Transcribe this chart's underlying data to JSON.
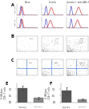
{
  "col_titles": [
    "Naive",
    "Listeria",
    "Listeria + anti-LAG-3"
  ],
  "row_labels_A": [
    "Day 21",
    "Day 11"
  ],
  "hist_blue": "#4444bb",
  "hist_red": "#cc3333",
  "dot_color": "#222222",
  "blue_line_color": "#4477cc",
  "panel_bg": "#f0f0f0",
  "axes_bg": "#ffffff",
  "bar_E": {
    "values": [
      3.2,
      1.0
    ],
    "errors": [
      0.55,
      0.25
    ],
    "bar_colors": [
      "#555555",
      "#888888"
    ],
    "ylabel": "% HA-Spec\nCD8+ T cells",
    "title": "E",
    "xtick_labels": [
      "anti-LAG-3\n+anti-CD8",
      "anti-LAG-3"
    ]
  },
  "bar_F": {
    "values": [
      2.6,
      0.7
    ],
    "errors": [
      0.8,
      0.2
    ],
    "bar_colors": [
      "#555555",
      "#888888"
    ],
    "ylabel": "# HA-Spec\nCD8+ T cells",
    "title": "F",
    "xtick_labels": [
      "anti-LAG-3\n+anti-CD8",
      "anti-LAG-3"
    ]
  },
  "scatter_B_pcts": [
    "0.01",
    "0.49",
    "0.87"
  ],
  "scatter_C_pcts": [
    "0.01",
    "0.62",
    "1.10"
  ],
  "scatter_B_ndots": [
    20,
    90,
    150
  ],
  "scatter_C_ndots": [
    20,
    80,
    130
  ]
}
